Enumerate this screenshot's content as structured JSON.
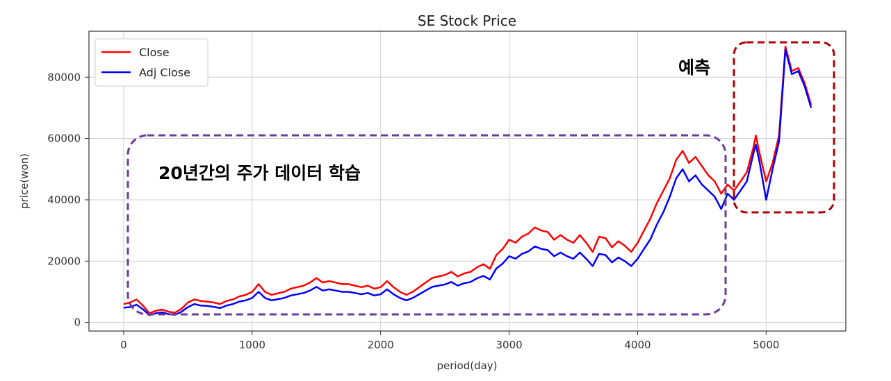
{
  "chart_data": {
    "type": "line",
    "title": "SE Stock Price",
    "xlabel": "period(day)",
    "ylabel": "price(won)",
    "xlim": [
      -270,
      5620
    ],
    "ylim": [
      -2800,
      95000
    ],
    "xticks": [
      0,
      1000,
      2000,
      3000,
      4000,
      5000
    ],
    "yticks": [
      0,
      20000,
      40000,
      60000,
      80000
    ],
    "grid": true,
    "legend": "top-left",
    "series": [
      {
        "name": "Close",
        "color": "#ff0000",
        "x": [
          0,
          50,
          100,
          150,
          200,
          250,
          300,
          350,
          400,
          450,
          500,
          550,
          600,
          650,
          700,
          750,
          800,
          850,
          900,
          950,
          1000,
          1050,
          1100,
          1150,
          1200,
          1250,
          1300,
          1350,
          1400,
          1450,
          1500,
          1550,
          1600,
          1650,
          1700,
          1750,
          1800,
          1850,
          1900,
          1950,
          2000,
          2050,
          2100,
          2150,
          2200,
          2250,
          2300,
          2350,
          2400,
          2450,
          2500,
          2550,
          2600,
          2650,
          2700,
          2750,
          2800,
          2850,
          2900,
          2950,
          3000,
          3050,
          3100,
          3150,
          3200,
          3250,
          3300,
          3350,
          3400,
          3450,
          3500,
          3550,
          3600,
          3650,
          3700,
          3750,
          3800,
          3850,
          3900,
          3950,
          4000,
          4050,
          4100,
          4150,
          4200,
          4250,
          4300,
          4350,
          4400,
          4450,
          4500,
          4550,
          4600,
          4650,
          4700,
          4750,
          4800,
          4850,
          4900,
          4920,
          4950,
          5000,
          5050,
          5100,
          5150,
          5200,
          5250,
          5300,
          5350
        ],
        "values": [
          6000,
          6500,
          7500,
          5500,
          3000,
          3800,
          4200,
          3500,
          3200,
          4500,
          6500,
          7500,
          7000,
          6800,
          6500,
          6000,
          7000,
          7500,
          8500,
          9000,
          10000,
          12500,
          10000,
          9000,
          9500,
          10000,
          11000,
          11500,
          12000,
          13000,
          14500,
          13000,
          13500,
          13000,
          12500,
          12500,
          12000,
          11500,
          12000,
          11000,
          11500,
          13500,
          11500,
          10000,
          9000,
          10000,
          11500,
          13000,
          14500,
          15000,
          15500,
          16500,
          15000,
          16000,
          16500,
          18000,
          19000,
          17500,
          22000,
          24000,
          27000,
          26000,
          28000,
          29000,
          31000,
          30000,
          29500,
          27000,
          28500,
          27000,
          26000,
          28500,
          26000,
          23000,
          28000,
          27500,
          24500,
          26500,
          25000,
          23000,
          26000,
          30000,
          34000,
          39000,
          43000,
          47000,
          53000,
          56000,
          52000,
          54000,
          51000,
          48000,
          46000,
          42000,
          45000,
          43000,
          46000,
          49000,
          57000,
          61000,
          55000,
          46000,
          52000,
          61000,
          90000,
          82000,
          83000,
          78000,
          71000
        ]
      },
      {
        "name": "Adj Close",
        "color": "#0000ff",
        "x": [
          0,
          50,
          100,
          150,
          200,
          250,
          300,
          350,
          400,
          450,
          500,
          550,
          600,
          650,
          700,
          750,
          800,
          850,
          900,
          950,
          1000,
          1050,
          1100,
          1150,
          1200,
          1250,
          1300,
          1350,
          1400,
          1450,
          1500,
          1550,
          1600,
          1650,
          1700,
          1750,
          1800,
          1850,
          1900,
          1950,
          2000,
          2050,
          2100,
          2150,
          2200,
          2250,
          2300,
          2350,
          2400,
          2450,
          2500,
          2550,
          2600,
          2650,
          2700,
          2750,
          2800,
          2850,
          2900,
          2950,
          3000,
          3050,
          3100,
          3150,
          3200,
          3250,
          3300,
          3350,
          3400,
          3450,
          3500,
          3550,
          3600,
          3650,
          3700,
          3750,
          3800,
          3850,
          3900,
          3950,
          4000,
          4050,
          4100,
          4150,
          4200,
          4250,
          4300,
          4350,
          4400,
          4450,
          4500,
          4550,
          4600,
          4650,
          4700,
          4750,
          4800,
          4850,
          4900,
          4920,
          4950,
          5000,
          5050,
          5100,
          5150,
          5200,
          5250,
          5300,
          5350
        ],
        "values": [
          4800,
          5000,
          5800,
          4300,
          2400,
          3000,
          3300,
          2700,
          2500,
          3500,
          5000,
          6000,
          5500,
          5400,
          5100,
          4700,
          5500,
          6000,
          6800,
          7200,
          8000,
          10000,
          8000,
          7200,
          7600,
          8000,
          8800,
          9200,
          9600,
          10400,
          11600,
          10400,
          10800,
          10400,
          10000,
          10000,
          9600,
          9200,
          9600,
          8800,
          9200,
          10800,
          9200,
          8000,
          7200,
          8000,
          9200,
          10400,
          11600,
          12000,
          12400,
          13200,
          12000,
          12800,
          13200,
          14400,
          15200,
          14000,
          17600,
          19200,
          21600,
          20800,
          22400,
          23200,
          24800,
          24000,
          23600,
          21600,
          22800,
          21600,
          20800,
          22800,
          20800,
          18400,
          22400,
          22000,
          19600,
          21200,
          20000,
          18400,
          20800,
          24000,
          27200,
          32000,
          36000,
          41000,
          47000,
          50000,
          46000,
          48000,
          45000,
          43000,
          41000,
          37000,
          42000,
          40000,
          43000,
          46000,
          55000,
          58000,
          52000,
          40000,
          50000,
          59000,
          89000,
          81000,
          82000,
          77000,
          70000
        ]
      }
    ]
  },
  "annotations": {
    "train_label": "20년간의 주가 데이터 학습",
    "predict_label": "예측",
    "train_box_color": "#6a3d9a",
    "predict_box_color": "#b00000"
  }
}
